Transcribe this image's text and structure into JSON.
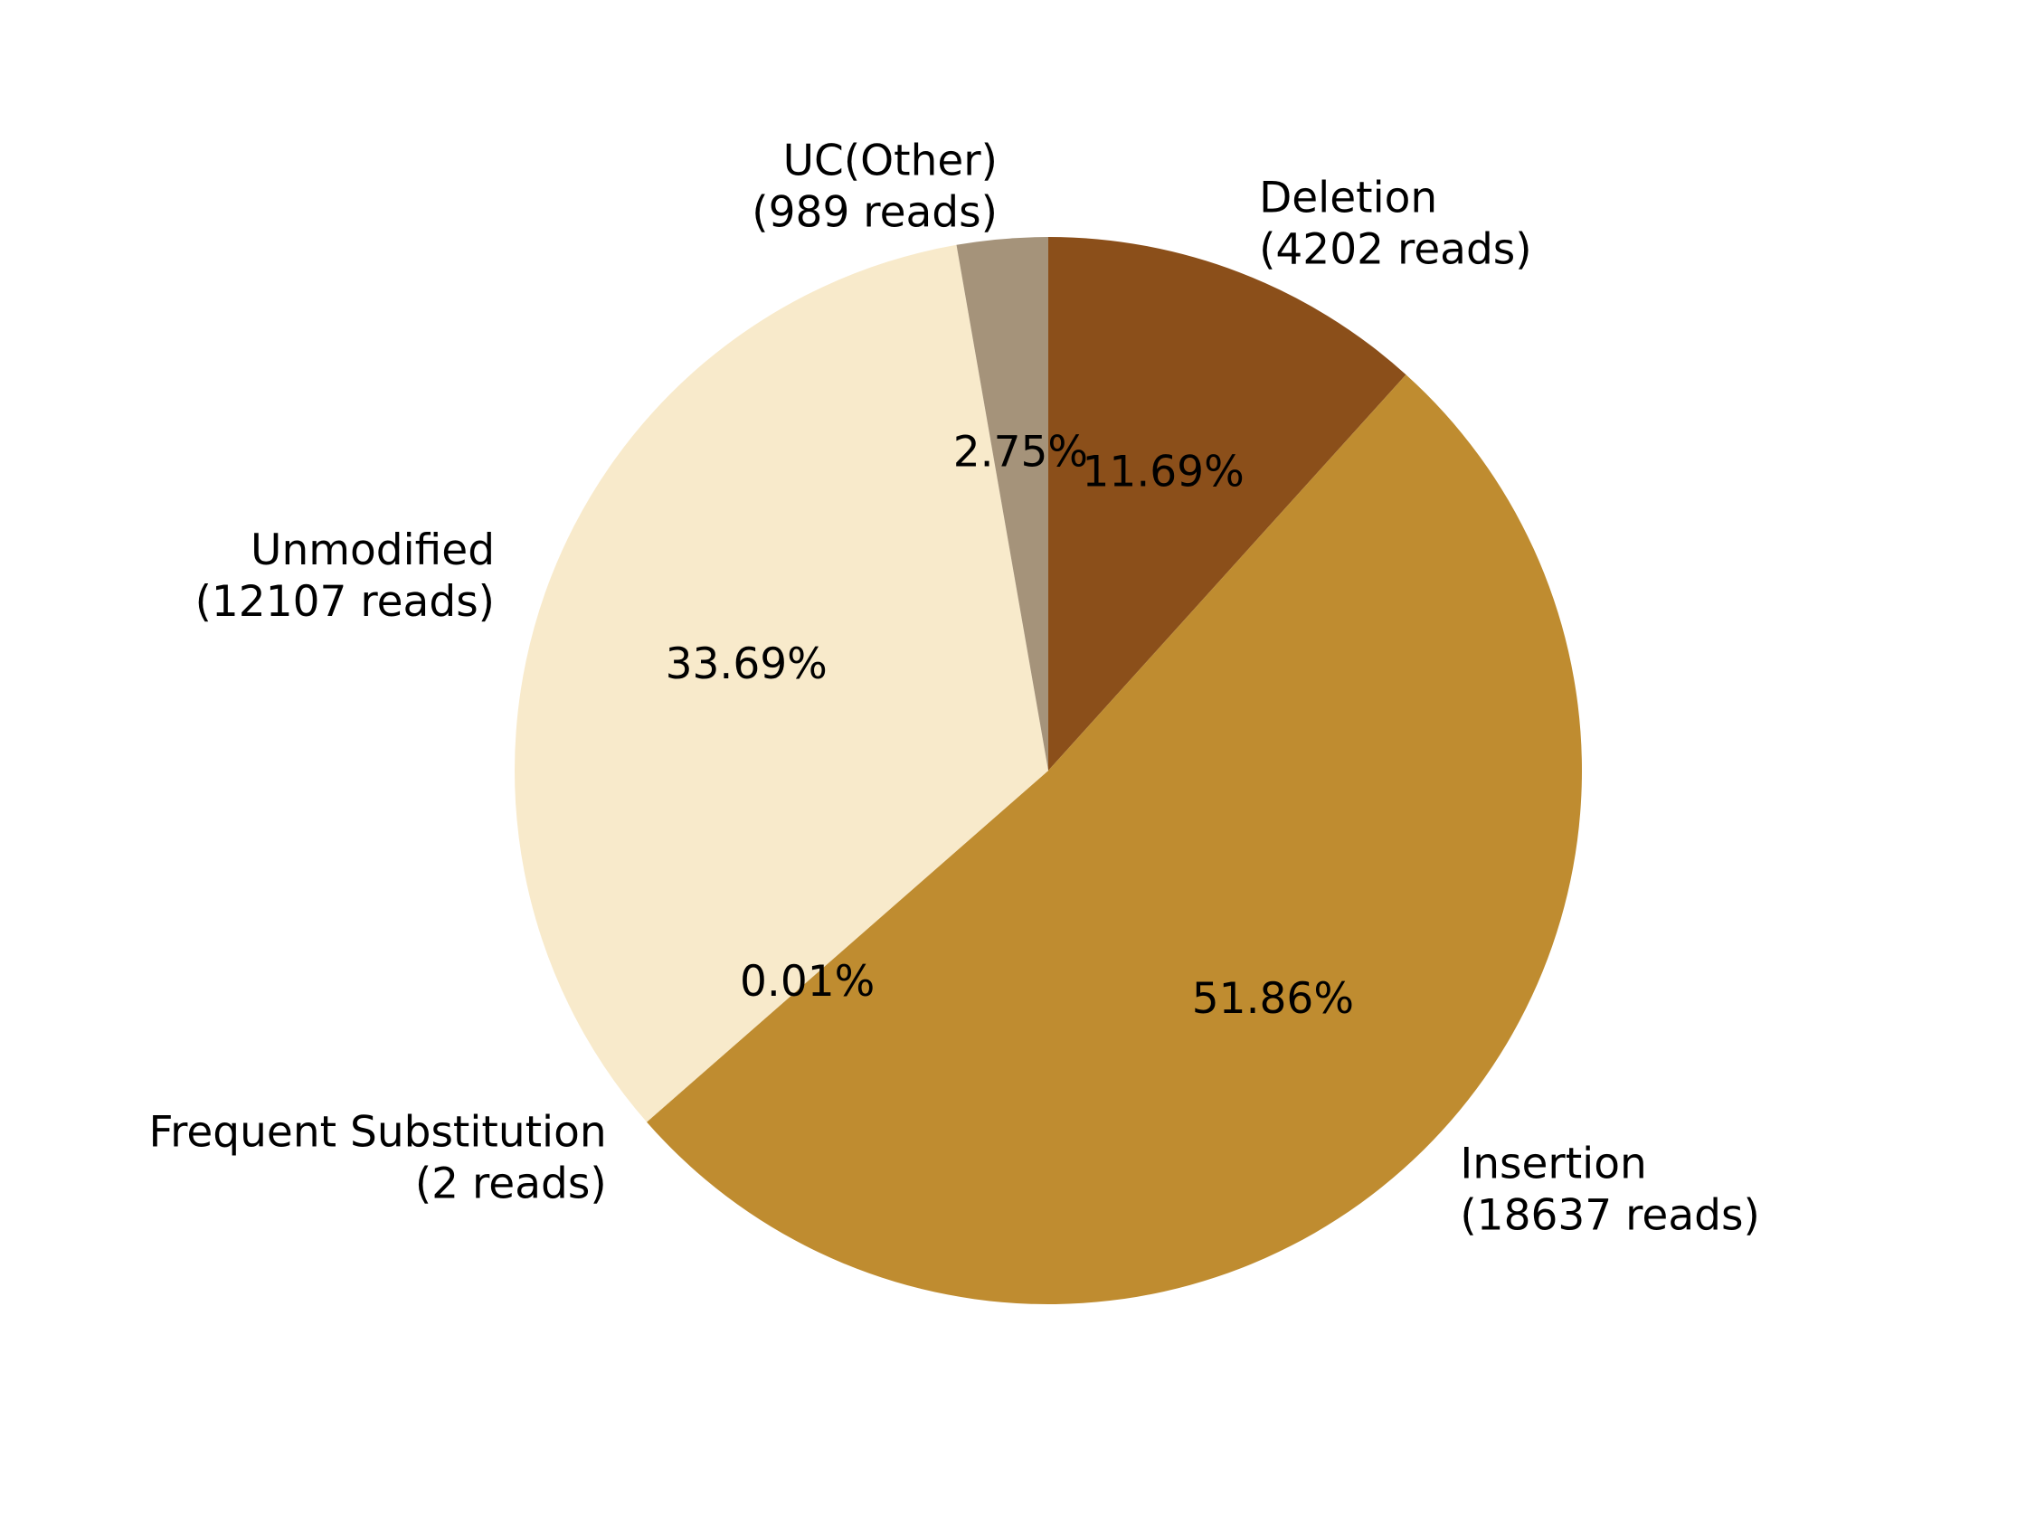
{
  "chart_data": {
    "type": "pie",
    "title": "",
    "start_angle_deg": 90,
    "direction": "clockwise",
    "slices": [
      {
        "label": "Deletion",
        "count_text": "(4202 reads)",
        "value": 4202,
        "percent_text": "11.69%",
        "color": "#8B4F1A"
      },
      {
        "label": "Insertion",
        "count_text": "(18637 reads)",
        "value": 18637,
        "percent_text": "51.86%",
        "color": "#BF8C30"
      },
      {
        "label": "Frequent Substitution",
        "count_text": "(2 reads)",
        "value": 2,
        "percent_text": "0.01%",
        "color": "#C4953E"
      },
      {
        "label": "Unmodified",
        "count_text": "(12107 reads)",
        "value": 12107,
        "percent_text": "33.69%",
        "color": "#F8EACB"
      },
      {
        "label": "UC(Other)",
        "count_text": "(989 reads)",
        "value": 989,
        "percent_text": "2.75%",
        "color": "#A5937A"
      }
    ]
  }
}
